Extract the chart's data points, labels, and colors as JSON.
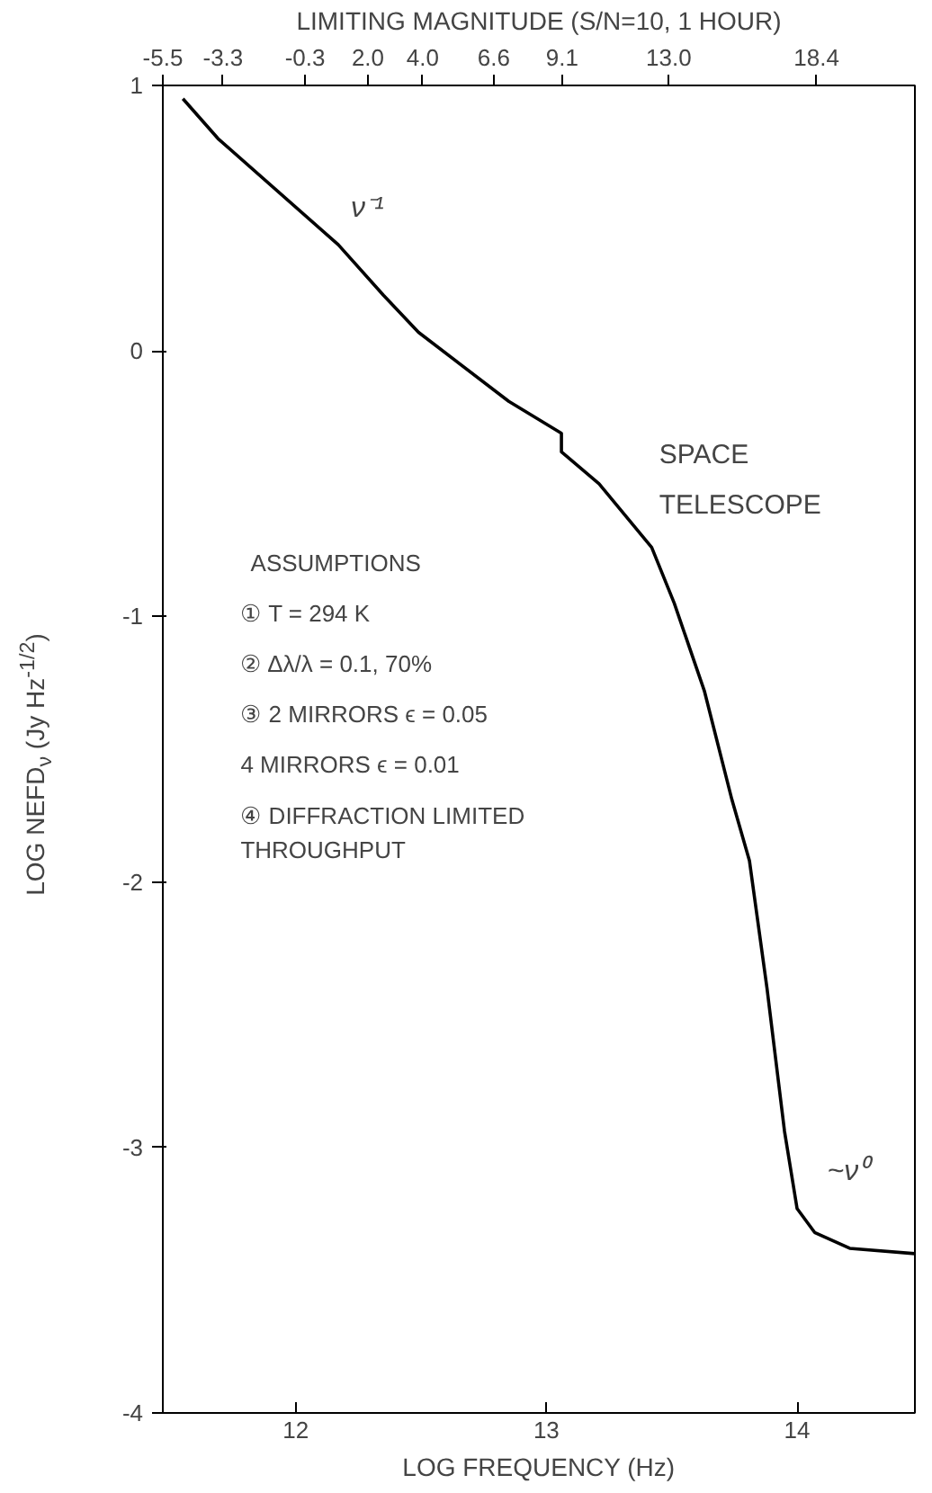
{
  "chart_data": {
    "type": "line",
    "xlabel": "LOG FREQUENCY (Hz)",
    "ylabel": "LOG NEFD$_{ν}$ (Jy Hz$^{-1/2}$)",
    "x2label": "LIMITING MAGNITUDE (S/N=10, 1 HOUR)",
    "xlim": [
      11.47,
      14.47
    ],
    "ylim": [
      -4,
      1
    ],
    "xticks": [
      12,
      13,
      14
    ],
    "yticks": [
      -4,
      -3,
      -2,
      -1,
      0,
      1
    ],
    "x2lim": [
      -5.5,
      22
    ],
    "x2ticks": [
      -5.5,
      -3.3,
      -0.3,
      {
        "value": 2.0,
        "label": "2.0"
      },
      {
        "value": 4.0,
        "label": "4.0"
      },
      6.6,
      9.1,
      {
        "value": 13.0,
        "label": "13.0"
      },
      18.4
    ],
    "series": [
      {
        "color": "#000000",
        "x": [
          11.55,
          11.69,
          12.17,
          12.35,
          12.49,
          12.85,
          13.06,
          13.06,
          13.21,
          13.42,
          13.51,
          13.63,
          13.74,
          13.81,
          13.88,
          13.95,
          14.0,
          14.07,
          14.21,
          14.47
        ],
        "values": [
          0.95,
          0.8,
          0.4,
          0.21,
          0.07,
          -0.19,
          -0.31,
          -0.38,
          -0.5,
          -0.74,
          -0.95,
          -1.28,
          -1.69,
          -1.92,
          -2.4,
          -2.94,
          -3.23,
          -3.32,
          -3.38,
          -3.4
        ]
      }
    ],
    "grid": false,
    "line_style": "solid",
    "annotations": [
      "ν⁻¹",
      "SPACE TELESCOPE",
      "~ν⁰",
      "ASSUMPTIONS",
      "① T = 294 K",
      "② Δλ/λ = 0.1, 70%",
      "③ 2 MIRRORS ϵ = 0.05",
      "4 MIRRORS ϵ = 0.01",
      "④ DIFFRACTION LIMITED THROUGHPUT"
    ]
  }
}
